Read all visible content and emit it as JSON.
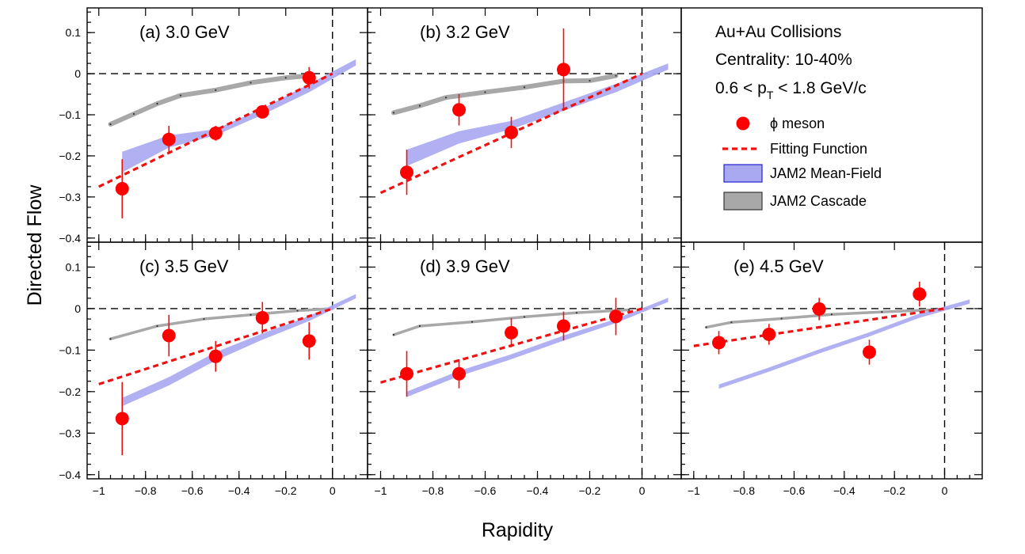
{
  "figure": {
    "y_axis_title": "Directed Flow",
    "x_axis_title": "Rapidity",
    "x_tick_labels": [
      "−1",
      "−0.8",
      "−0.6",
      "−0.4",
      "−0.2",
      "0"
    ],
    "y_tick_labels": [
      "−0.4",
      "−0.3",
      "−0.2",
      "−0.1",
      "0",
      "0.1"
    ]
  },
  "info": {
    "line1": "Au+Au Collisions",
    "line2": "Centrality: 10-40%",
    "line3_pre": "0.6 < p",
    "line3_sub": "T",
    "line3_post": " < 1.8  GeV/c"
  },
  "legend": [
    {
      "key": "phi",
      "label": "ϕ meson"
    },
    {
      "key": "fit",
      "label": "Fitting Function"
    },
    {
      "key": "mf",
      "label": "JAM2 Mean-Field"
    },
    {
      "key": "cascade",
      "label": "JAM2 Cascade"
    }
  ],
  "colors": {
    "data": "#ff0000",
    "errorbar": "#ee1111",
    "fit": "#ee1111",
    "mean_field": "#a9a9f2",
    "mean_field_border": "#2222cc",
    "cascade": "#a8a8a8",
    "cascade_border": "#333333"
  },
  "chart_data": [
    {
      "type": "scatter",
      "title": "(a) 3.0 GeV",
      "xlabel": "Rapidity",
      "ylabel": "Directed Flow",
      "xlim": [
        -1.05,
        0.15
      ],
      "ylim": [
        -0.41,
        0.16
      ],
      "series": [
        {
          "name": "ϕ meson",
          "x": [
            -0.9,
            -0.7,
            -0.5,
            -0.3,
            -0.1
          ],
          "y": [
            -0.28,
            -0.16,
            -0.145,
            -0.093,
            -0.01
          ],
          "yerr": [
            0.072,
            0.033,
            0.018,
            0.014,
            0.026
          ]
        },
        {
          "name": "Fitting Function",
          "x": [
            -1.0,
            0.0
          ],
          "y": [
            -0.275,
            0.0
          ]
        },
        {
          "name": "JAM2 Mean-Field",
          "x": [
            -0.9,
            -0.7,
            -0.5,
            -0.3,
            -0.1,
            0.1
          ],
          "y_low": [
            -0.24,
            -0.18,
            -0.15,
            -0.1,
            -0.045,
            0.02
          ],
          "y_high": [
            -0.19,
            -0.15,
            -0.135,
            -0.085,
            -0.025,
            0.035
          ]
        },
        {
          "name": "JAM2 Cascade",
          "x": [
            -0.95,
            -0.85,
            -0.75,
            -0.65,
            -0.5,
            -0.35,
            -0.2,
            -0.1
          ],
          "y": [
            -0.123,
            -0.098,
            -0.073,
            -0.053,
            -0.04,
            -0.022,
            -0.01,
            -0.005
          ]
        }
      ]
    },
    {
      "type": "scatter",
      "title": "(b) 3.2 GeV",
      "xlabel": "Rapidity",
      "ylabel": "Directed Flow",
      "xlim": [
        -1.05,
        0.15
      ],
      "ylim": [
        -0.41,
        0.16
      ],
      "series": [
        {
          "name": "ϕ meson",
          "x": [
            -0.9,
            -0.7,
            -0.5,
            -0.3,
            -0.1
          ],
          "y": [
            -0.24,
            -0.088,
            -0.143,
            0.01,
            null
          ],
          "yerr": [
            0.055,
            0.038,
            0.038,
            0.1,
            null
          ]
        },
        {
          "name": "Fitting Function",
          "x": [
            -1.0,
            0.0
          ],
          "y": [
            -0.29,
            0.0
          ]
        },
        {
          "name": "JAM2 Mean-Field",
          "x": [
            -0.9,
            -0.7,
            -0.5,
            -0.3,
            -0.1,
            0.1
          ],
          "y_low": [
            -0.225,
            -0.17,
            -0.135,
            -0.09,
            -0.045,
            0.01
          ],
          "y_high": [
            -0.185,
            -0.14,
            -0.115,
            -0.07,
            -0.025,
            0.025
          ]
        },
        {
          "name": "JAM2 Cascade",
          "x": [
            -0.95,
            -0.85,
            -0.75,
            -0.6,
            -0.45,
            -0.3,
            -0.2,
            -0.1
          ],
          "y": [
            -0.095,
            -0.078,
            -0.058,
            -0.045,
            -0.033,
            -0.018,
            -0.017,
            -0.005
          ]
        }
      ]
    },
    {
      "type": "scatter",
      "title": "(c) 3.5 GeV",
      "xlabel": "Rapidity",
      "ylabel": "Directed Flow",
      "xlim": [
        -1.05,
        0.15
      ],
      "ylim": [
        -0.41,
        0.16
      ],
      "series": [
        {
          "name": "ϕ meson",
          "x": [
            -0.9,
            -0.7,
            -0.5,
            -0.3,
            -0.1
          ],
          "y": [
            -0.265,
            -0.065,
            -0.115,
            -0.022,
            -0.078
          ],
          "yerr": [
            0.088,
            0.05,
            0.037,
            0.038,
            0.045
          ]
        },
        {
          "name": "Fitting Function",
          "x": [
            -1.0,
            0.0
          ],
          "y": [
            -0.182,
            0.0
          ]
        },
        {
          "name": "JAM2 Mean-Field",
          "x": [
            -0.9,
            -0.7,
            -0.5,
            -0.3,
            -0.1,
            0.1
          ],
          "y_low": [
            -0.235,
            -0.185,
            -0.125,
            -0.075,
            -0.03,
            0.025
          ],
          "y_high": [
            -0.215,
            -0.165,
            -0.105,
            -0.06,
            -0.018,
            0.035
          ]
        },
        {
          "name": "JAM2 Cascade",
          "x": [
            -0.95,
            -0.75,
            -0.55,
            -0.35,
            -0.15,
            0.0
          ],
          "y": [
            -0.073,
            -0.042,
            -0.025,
            -0.015,
            -0.005,
            0.0
          ]
        }
      ]
    },
    {
      "type": "scatter",
      "title": "(d) 3.9 GeV",
      "xlabel": "Rapidity",
      "ylabel": "Directed Flow",
      "xlim": [
        -1.05,
        0.15
      ],
      "ylim": [
        -0.41,
        0.16
      ],
      "series": [
        {
          "name": "ϕ meson",
          "x": [
            -0.9,
            -0.7,
            -0.5,
            -0.3,
            -0.1
          ],
          "y": [
            -0.157,
            -0.157,
            -0.058,
            -0.042,
            -0.019
          ],
          "yerr": [
            0.055,
            0.035,
            0.035,
            0.035,
            0.045
          ]
        },
        {
          "name": "Fitting Function",
          "x": [
            -1.0,
            0.0
          ],
          "y": [
            -0.178,
            0.0
          ]
        },
        {
          "name": "JAM2 Mean-Field",
          "x": [
            -0.9,
            -0.7,
            -0.5,
            -0.3,
            -0.1,
            0.1
          ],
          "y_low": [
            -0.213,
            -0.163,
            -0.122,
            -0.077,
            -0.035,
            0.016
          ],
          "y_high": [
            -0.2,
            -0.15,
            -0.11,
            -0.065,
            -0.025,
            0.026
          ]
        },
        {
          "name": "JAM2 Cascade",
          "x": [
            -0.95,
            -0.85,
            -0.65,
            -0.45,
            -0.25,
            -0.05
          ],
          "y": [
            -0.063,
            -0.042,
            -0.032,
            -0.02,
            -0.01,
            -0.003
          ]
        }
      ]
    },
    {
      "type": "scatter",
      "title": "(e) 4.5 GeV",
      "xlabel": "Rapidity",
      "ylabel": "Directed Flow",
      "xlim": [
        -1.05,
        0.15
      ],
      "ylim": [
        -0.41,
        0.16
      ],
      "series": [
        {
          "name": "ϕ meson",
          "x": [
            -0.9,
            -0.7,
            -0.5,
            -0.3,
            -0.1
          ],
          "y": [
            -0.082,
            -0.062,
            -0.001,
            -0.105,
            0.035
          ],
          "yerr": [
            0.028,
            0.025,
            0.027,
            0.03,
            0.03
          ]
        },
        {
          "name": "Fitting Function",
          "x": [
            -1.0,
            0.0
          ],
          "y": [
            -0.09,
            0.0
          ]
        },
        {
          "name": "JAM2 Mean-Field",
          "x": [
            -0.9,
            -0.7,
            -0.5,
            -0.3,
            -0.1,
            0.1
          ],
          "y_low": [
            -0.193,
            -0.152,
            -0.108,
            -0.067,
            -0.022,
            0.012
          ],
          "y_high": [
            -0.183,
            -0.142,
            -0.098,
            -0.057,
            -0.012,
            0.022
          ]
        },
        {
          "name": "JAM2 Cascade",
          "x": [
            -0.95,
            -0.85,
            -0.65,
            -0.45,
            -0.25,
            -0.05
          ],
          "y": [
            -0.045,
            -0.033,
            -0.024,
            -0.014,
            -0.008,
            -0.003
          ]
        }
      ]
    }
  ]
}
